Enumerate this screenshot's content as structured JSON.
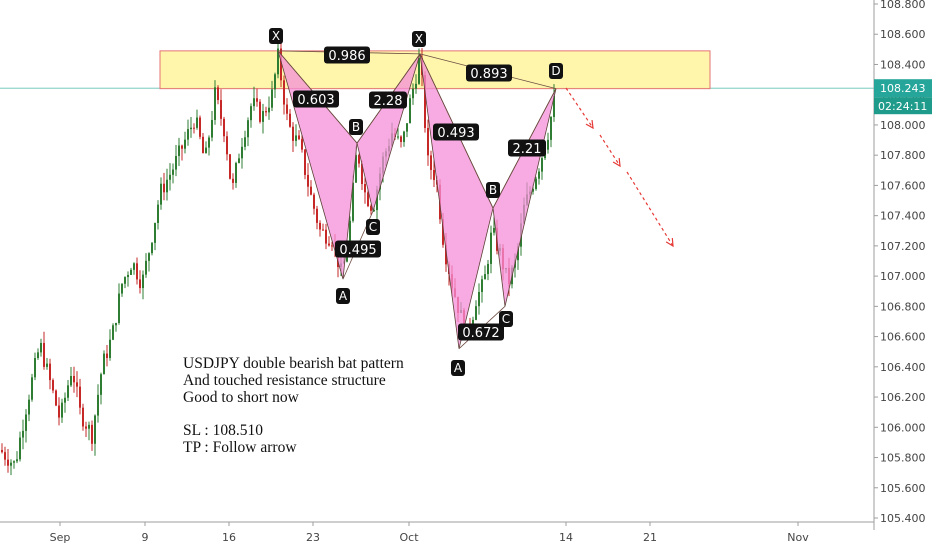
{
  "chart_data": {
    "type": "candlestick",
    "symbol": "USDJPY",
    "y_axis": {
      "ticks": [
        "108.800",
        "108.600",
        "108.400",
        "108.200",
        "108.000",
        "107.800",
        "107.600",
        "107.400",
        "107.200",
        "107.000",
        "106.800",
        "106.600",
        "106.400",
        "106.200",
        "106.000",
        "105.800",
        "105.600",
        "105.400"
      ],
      "range": [
        105.37,
        108.93
      ]
    },
    "x_axis": {
      "ticks": [
        "Sep",
        "9",
        "16",
        "23",
        "Oct",
        "14",
        "21",
        "Nov"
      ]
    },
    "current_price": "108.243",
    "countdown": "02:24:11",
    "resistance_zone": [
      108.24,
      108.49
    ],
    "pattern_1": {
      "points": [
        {
          "label": "X",
          "x": "Sep 19",
          "y": 108.49
        },
        {
          "label": "A",
          "x": "Sep 26",
          "y": 106.98
        },
        {
          "label": "B",
          "x": "Sep 27",
          "y": 107.88
        },
        {
          "label": "C",
          "x": "Sep 28",
          "y": 107.43
        },
        {
          "label": "D",
          "x": "Oct 1",
          "y": 108.47
        }
      ],
      "ratios": [
        "0.603",
        "0.495",
        "2.28"
      ]
    },
    "pattern_2": {
      "points": [
        {
          "label": "X",
          "x": "Oct 1",
          "y": 108.47
        },
        {
          "label": "A",
          "x": "Oct 3",
          "y": 106.52
        },
        {
          "label": "B",
          "x": "Oct 7",
          "y": 107.45
        },
        {
          "label": "C",
          "x": "Oct 9",
          "y": 106.8
        },
        {
          "label": "D",
          "x": "Oct 13",
          "y": 108.24
        }
      ],
      "ratios": [
        "0.493",
        "0.672",
        "2.21"
      ]
    },
    "xd_ratios": [
      "0.986",
      "0.893"
    ],
    "projection": "downward arrow from D",
    "annotation": [
      "USDJPY double bearish bat pattern",
      "And touched resistance structure",
      "Good to short now",
      "",
      "SL : 108.510",
      "TP : Follow arrow"
    ],
    "colors": {
      "up": "#26a69a",
      "down": "#ef5350",
      "up_body": "#2e7d32",
      "down_body": "#c62828",
      "zone_fill": "#fff59d",
      "zone_stroke": "#e57373",
      "pattern_fill": "#f48fd8",
      "current_line": "#26a69a",
      "arrow": "#e53935"
    }
  }
}
